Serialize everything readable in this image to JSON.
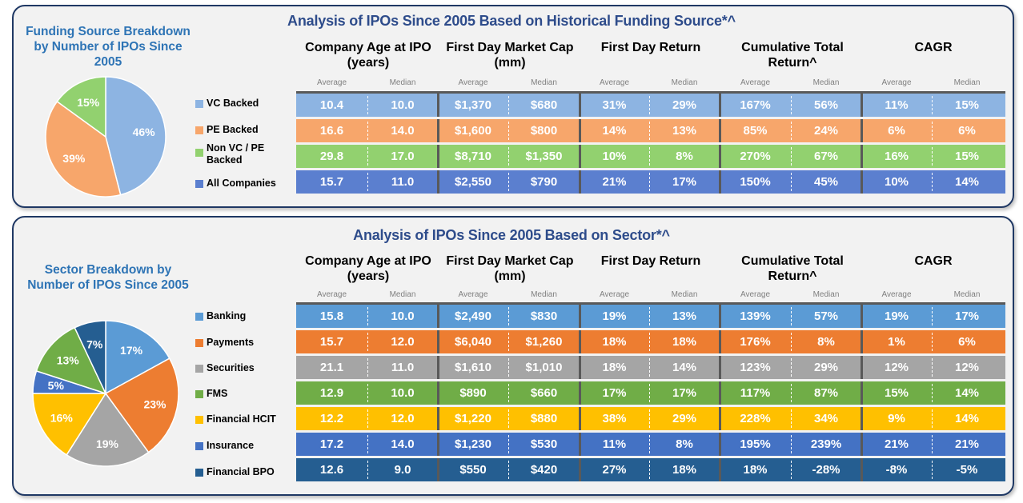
{
  "col_headers": [
    "Company Age at IPO (years)",
    "First Day Market Cap (mm)",
    "First Day Return",
    "Cumulative Total Return^",
    "CAGR"
  ],
  "sub_headers": [
    "Average",
    "Median"
  ],
  "sections": [
    {
      "title": "Analysis of IPOs Since 2005 Based on Historical Funding Source*^",
      "pie_title": "Funding Source Breakdown by Number of IPOs Since 2005",
      "rows": [
        {
          "label": "VC Backed",
          "color": "#8db4e2",
          "values": [
            "10.4",
            "10.0",
            "$1,370",
            "$680",
            "31%",
            "29%",
            "167%",
            "56%",
            "11%",
            "15%"
          ]
        },
        {
          "label": "PE Backed",
          "color": "#f7a66b",
          "values": [
            "16.6",
            "14.0",
            "$1,600",
            "$800",
            "14%",
            "13%",
            "85%",
            "24%",
            "6%",
            "6%"
          ]
        },
        {
          "label": "Non VC / PE Backed",
          "color": "#92d16f",
          "values": [
            "29.8",
            "17.0",
            "$8,710",
            "$1,350",
            "10%",
            "8%",
            "270%",
            "67%",
            "16%",
            "15%"
          ]
        },
        {
          "label": "All Companies",
          "color": "#5b7fcf",
          "values": [
            "15.7",
            "11.0",
            "$2,550",
            "$790",
            "21%",
            "17%",
            "150%",
            "45%",
            "10%",
            "14%"
          ]
        }
      ]
    },
    {
      "title": "Analysis of IPOs Since 2005 Based on Sector*^",
      "pie_title": "Sector Breakdown by Number of IPOs Since 2005",
      "rows": [
        {
          "label": "Banking",
          "color": "#5b9bd5",
          "values": [
            "15.8",
            "10.0",
            "$2,490",
            "$830",
            "19%",
            "13%",
            "139%",
            "57%",
            "19%",
            "17%"
          ]
        },
        {
          "label": "Payments",
          "color": "#ed7d31",
          "values": [
            "15.7",
            "12.0",
            "$6,040",
            "$1,260",
            "18%",
            "18%",
            "176%",
            "8%",
            "1%",
            "6%"
          ]
        },
        {
          "label": "Securities",
          "color": "#a5a5a5",
          "values": [
            "21.1",
            "11.0",
            "$1,610",
            "$1,010",
            "18%",
            "14%",
            "123%",
            "29%",
            "12%",
            "12%"
          ]
        },
        {
          "label": "FMS",
          "color": "#70ad47",
          "values": [
            "12.9",
            "10.0",
            "$890",
            "$660",
            "17%",
            "17%",
            "117%",
            "87%",
            "15%",
            "14%"
          ]
        },
        {
          "label": "Financial HCIT",
          "color": "#ffc000",
          "values": [
            "12.2",
            "12.0",
            "$1,220",
            "$880",
            "38%",
            "29%",
            "228%",
            "34%",
            "9%",
            "14%"
          ]
        },
        {
          "label": "Insurance",
          "color": "#4472c4",
          "values": [
            "17.2",
            "14.0",
            "$1,230",
            "$530",
            "11%",
            "8%",
            "195%",
            "239%",
            "21%",
            "21%"
          ]
        },
        {
          "label": "Financial BPO",
          "color": "#255e91",
          "values": [
            "12.6",
            "9.0",
            "$550",
            "$420",
            "27%",
            "18%",
            "18%",
            "-28%",
            "-8%",
            "-5%"
          ]
        }
      ]
    }
  ],
  "chart_data": [
    {
      "type": "pie",
      "title": "Funding Source Breakdown by Number of IPOs Since 2005",
      "slices": [
        {
          "label": "VC Backed",
          "value": 46,
          "display": "46%",
          "color": "#8db4e2"
        },
        {
          "label": "PE Backed",
          "value": 39,
          "display": "39%",
          "color": "#f7a66b"
        },
        {
          "label": "Non VC / PE Backed",
          "value": 15,
          "display": "15%",
          "color": "#92d16f"
        }
      ]
    },
    {
      "type": "pie",
      "title": "Sector Breakdown by Number of IPOs Since 2005",
      "slices": [
        {
          "label": "Banking",
          "value": 17,
          "display": "17%",
          "color": "#5b9bd5"
        },
        {
          "label": "Payments",
          "value": 23,
          "display": "23%",
          "color": "#ed7d31"
        },
        {
          "label": "Securities",
          "value": 19,
          "display": "19%",
          "color": "#a5a5a5"
        },
        {
          "label": "Financial HCIT",
          "value": 16,
          "display": "16%",
          "color": "#ffc000"
        },
        {
          "label": "Insurance",
          "value": 5,
          "display": "5%",
          "color": "#4472c4"
        },
        {
          "label": "FMS",
          "value": 13,
          "display": "13%",
          "color": "#70ad47"
        },
        {
          "label": "Financial BPO",
          "value": 7,
          "display": "7%",
          "color": "#255e91"
        }
      ]
    }
  ]
}
